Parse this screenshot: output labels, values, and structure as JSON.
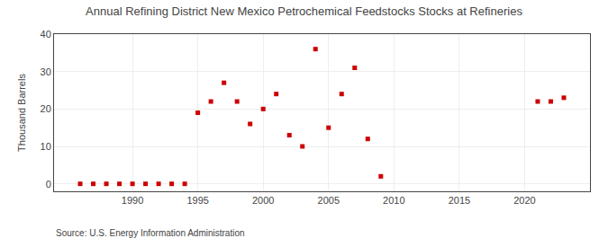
{
  "chart_data": {
    "type": "scatter",
    "title": "Annual Refining District New Mexico Petrochemical Feedstocks Stocks at Refineries",
    "y_label": "Thousand Barrels",
    "annotations": [
      "Source: U.S. Energy Information Administration"
    ],
    "x": [
      1986,
      1987,
      1988,
      1989,
      1990,
      1991,
      1992,
      1993,
      1994,
      1995,
      1996,
      1997,
      1998,
      1999,
      2000,
      2001,
      2002,
      2003,
      2004,
      2005,
      2006,
      2007,
      2008,
      2009,
      2021,
      2022,
      2023
    ],
    "values": [
      0,
      0,
      0,
      0,
      0,
      0,
      0,
      0,
      0,
      19,
      22,
      27,
      22,
      16,
      20,
      24,
      13,
      10,
      36,
      15,
      24,
      31,
      12,
      2,
      22,
      22,
      23
    ],
    "color": "#cc0000",
    "marker": "square",
    "xlim": [
      1984,
      2025
    ],
    "xticks": [
      1990,
      1995,
      2000,
      2005,
      2010,
      2015,
      2020
    ],
    "ylim": [
      -2,
      40
    ],
    "yticks": [
      0,
      10,
      20,
      30,
      40
    ],
    "grid": true
  }
}
